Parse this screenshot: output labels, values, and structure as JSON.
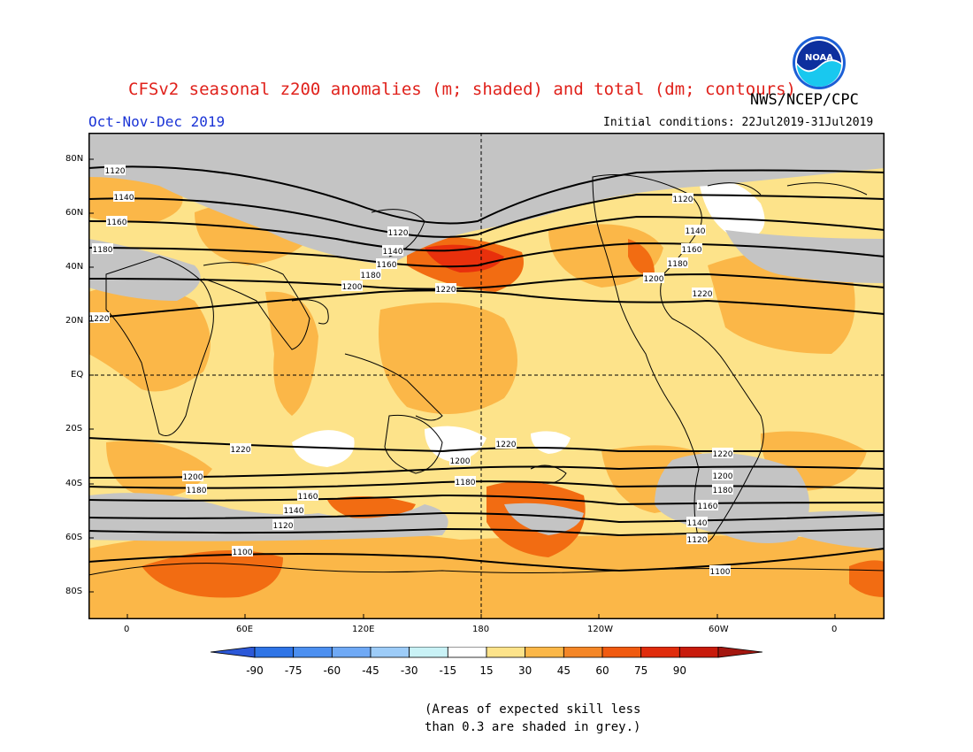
{
  "header": {
    "title": "CFSv2 seasonal z200 anomalies (m; shaded) and total (dm; contours)",
    "agency": "NWS/NCEP/CPC",
    "season": "Oct-Nov-Dec 2019",
    "initial_conditions": "Initial conditions: 22Jul2019-31Jul2019",
    "logo_text": "NOAA"
  },
  "map": {
    "lat_labels": [
      "80N",
      "60N",
      "40N",
      "20N",
      "EQ",
      "20S",
      "40S",
      "60S",
      "80S"
    ],
    "lon_labels": [
      "0",
      "60E",
      "120E",
      "180",
      "120W",
      "60W",
      "0"
    ],
    "contour_labels": [
      "1100",
      "1120",
      "1140",
      "1160",
      "1180",
      "1200",
      "1220"
    ],
    "colors": {
      "grey_low_skill": "#c4c4c4",
      "band_15_30": "#fde38a",
      "band_30_45": "#fbb748",
      "band_45_60": "#f26c12",
      "band_60_75": "#e8300c",
      "band_neutral": "#ffffff",
      "contour": "#000000"
    }
  },
  "colorbar": {
    "ticks": [
      "-90",
      "-75",
      "-60",
      "-45",
      "-30",
      "-15",
      "15",
      "30",
      "45",
      "60",
      "75",
      "90"
    ],
    "colors": [
      "#2c58d8",
      "#2f74e6",
      "#4c8ff0",
      "#6fa9f5",
      "#9dccf8",
      "#c9f2f6",
      "#ffffff",
      "#fde38a",
      "#fbb748",
      "#f48627",
      "#f05a10",
      "#e02c0c",
      "#c81b0c",
      "#a3160f"
    ]
  },
  "footnote": {
    "line1": "(Areas of expected skill less",
    "line2": "than 0.3 are shaded in grey.)"
  }
}
